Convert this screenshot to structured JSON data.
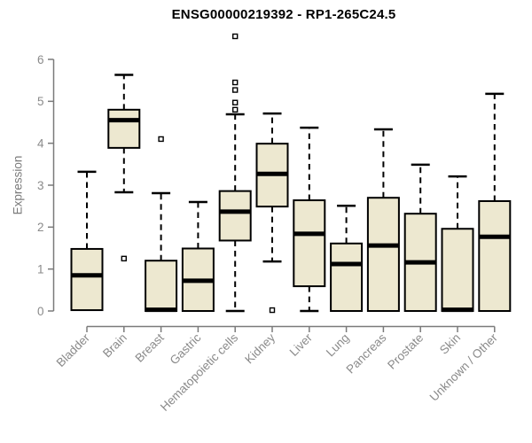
{
  "chart_data": {
    "type": "boxplot",
    "title": "ENSG00000219392 - RP1-265C24.5",
    "xlabel": "",
    "ylabel": "Expression",
    "ylim": [
      0,
      6
    ],
    "yticks": [
      0,
      1,
      2,
      3,
      4,
      5,
      6
    ],
    "grid": false,
    "legend": null,
    "box_fill_color": "#ede8d0",
    "box_border_color": "#000000",
    "axis_color": "#7a7a7a",
    "tick_label_color": "#8a8a8a",
    "categories": [
      "Bladder",
      "Brain",
      "Breast",
      "Gastric",
      "Hematopoietic cells",
      "Kidney",
      "Liver",
      "Lung",
      "Pancreas",
      "Prostate",
      "Skin",
      "Unknown / Other"
    ],
    "series": [
      {
        "name": "Bladder",
        "low": null,
        "q1": 0.02,
        "median": 0.85,
        "q3": 1.48,
        "high": 3.32,
        "outliers": []
      },
      {
        "name": "Brain",
        "low": 2.83,
        "q1": 3.89,
        "median": 4.55,
        "q3": 4.8,
        "high": 5.63,
        "outliers": [
          1.25
        ]
      },
      {
        "name": "Breast",
        "low": null,
        "q1": 0.0,
        "median": 0.03,
        "q3": 1.2,
        "high": 2.81,
        "outliers": [
          4.1
        ]
      },
      {
        "name": "Gastric",
        "low": null,
        "q1": 0.0,
        "median": 0.72,
        "q3": 1.49,
        "high": 2.6,
        "outliers": []
      },
      {
        "name": "Hematopoietic cells",
        "low": 0.0,
        "q1": 1.68,
        "median": 2.37,
        "q3": 2.86,
        "high": 4.69,
        "outliers": [
          4.8,
          4.97,
          5.27,
          5.45,
          6.55
        ]
      },
      {
        "name": "Kidney",
        "low": 1.18,
        "q1": 2.49,
        "median": 3.27,
        "q3": 3.99,
        "high": 4.71,
        "outliers": [
          0.02
        ]
      },
      {
        "name": "Liver",
        "low": 0.0,
        "q1": 0.59,
        "median": 1.84,
        "q3": 2.64,
        "high": 4.37,
        "outliers": []
      },
      {
        "name": "Lung",
        "low": null,
        "q1": 0.0,
        "median": 1.12,
        "q3": 1.61,
        "high": 2.51,
        "outliers": []
      },
      {
        "name": "Pancreas",
        "low": null,
        "q1": 0.0,
        "median": 1.56,
        "q3": 2.7,
        "high": 4.33,
        "outliers": []
      },
      {
        "name": "Prostate",
        "low": null,
        "q1": 0.0,
        "median": 1.16,
        "q3": 2.32,
        "high": 3.49,
        "outliers": []
      },
      {
        "name": "Skin",
        "low": null,
        "q1": 0.0,
        "median": 0.03,
        "q3": 1.96,
        "high": 3.21,
        "outliers": []
      },
      {
        "name": "Unknown / Other",
        "low": null,
        "q1": 0.0,
        "median": 1.77,
        "q3": 2.62,
        "high": 5.18,
        "outliers": []
      }
    ]
  }
}
